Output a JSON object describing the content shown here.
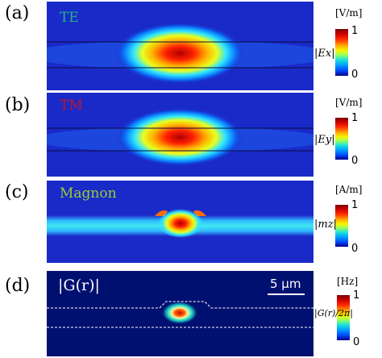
{
  "panels": [
    {
      "letter": "(a)",
      "label": "TE",
      "label_color": "#22b28a",
      "unit": "[V/m]",
      "tick_max": "1",
      "tick_min": "0",
      "quantity": "|Ex|"
    },
    {
      "letter": "(b)",
      "label": "TM",
      "label_color": "#c8141e",
      "unit": "[V/m]",
      "tick_max": "1",
      "tick_min": "0",
      "quantity": "|Ey|"
    },
    {
      "letter": "(c)",
      "label": "Magnon",
      "label_color": "#9acd32",
      "unit": "[A/m]",
      "tick_max": "1",
      "tick_min": "0",
      "quantity": "|mz|"
    },
    {
      "letter": "(d)",
      "label": "|G(r)|",
      "label_color": "#ffffff",
      "unit": "[Hz]",
      "tick_max": "1",
      "tick_min": "0",
      "quantity": "|G(r)/2π|"
    }
  ],
  "scale_bar": {
    "label": "5 μm"
  },
  "colors": {
    "background_blue": "#1a2ac8",
    "colormap": "jet"
  }
}
